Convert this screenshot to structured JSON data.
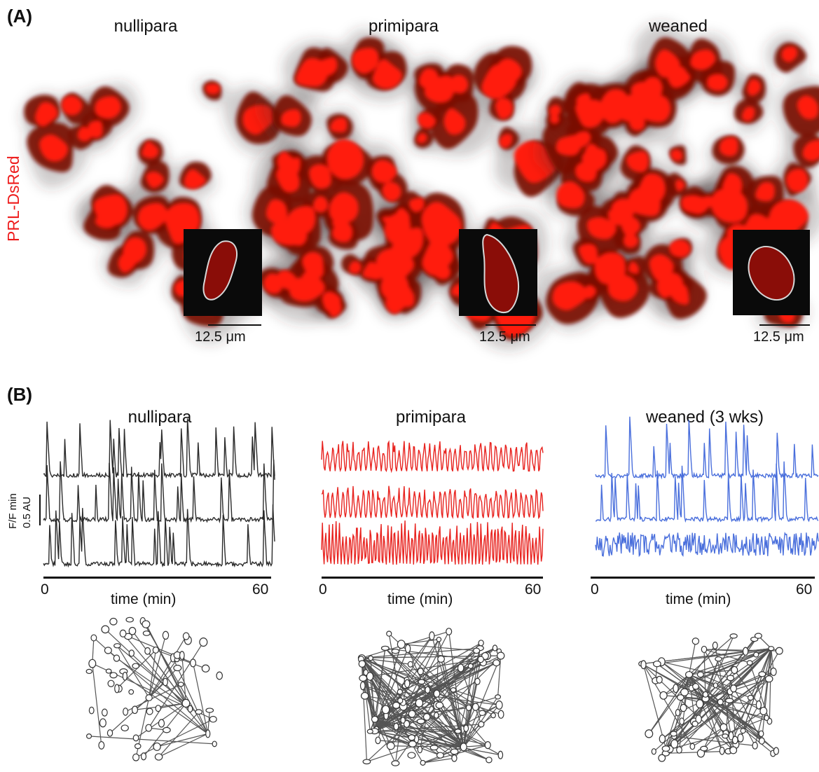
{
  "panel_a": {
    "letter": "(A)",
    "side_label": "PRL-DsRed",
    "columns": [
      {
        "title": "nullipara",
        "scale_bar": "12.5 μm"
      },
      {
        "title": "primipara",
        "scale_bar": "12.5 μm"
      },
      {
        "title": "weaned",
        "scale_bar": "12.5 μm"
      }
    ]
  },
  "panel_b": {
    "letter": "(B)",
    "y_scale_label_1": "F/F min",
    "y_scale_label_2": "0.5 AU",
    "columns": [
      {
        "title": "nullipara",
        "x_start": "0",
        "x_end": "60",
        "x_label": "time (min)",
        "trace_color": "#2b2b2b"
      },
      {
        "title": "primipara",
        "x_start": "0",
        "x_end": "60",
        "x_label": "time (min)",
        "trace_color": "#e8231f"
      },
      {
        "title": "weaned (3 wks)",
        "x_start": "0",
        "x_end": "60",
        "x_label": "time (min)",
        "trace_color": "#4a6fdc"
      }
    ]
  },
  "colors": {
    "dsred": "#ff1a0f",
    "dark_red": "#7a0a06",
    "network": "#555555"
  }
}
